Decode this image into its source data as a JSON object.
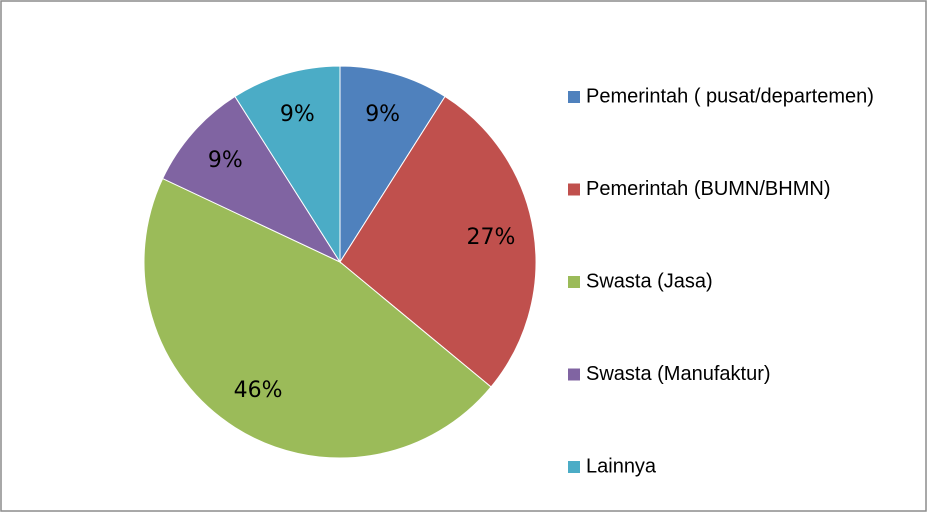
{
  "chart_data": {
    "type": "pie",
    "categories": [
      "Pemerintah ( pusat/departemen)",
      "Pemerintah (BUMN/BHMN)",
      "Swasta (Jasa)",
      "Swasta (Manufaktur)",
      "Lainnya"
    ],
    "values": [
      9,
      27,
      46,
      9,
      9
    ],
    "value_labels": [
      "9%",
      "27%",
      "46%",
      "9%",
      "9%"
    ],
    "colors": [
      "#4f81bd",
      "#c0504d",
      "#9bbb59",
      "#8064a2",
      "#4bacc6"
    ],
    "legend": "right"
  }
}
